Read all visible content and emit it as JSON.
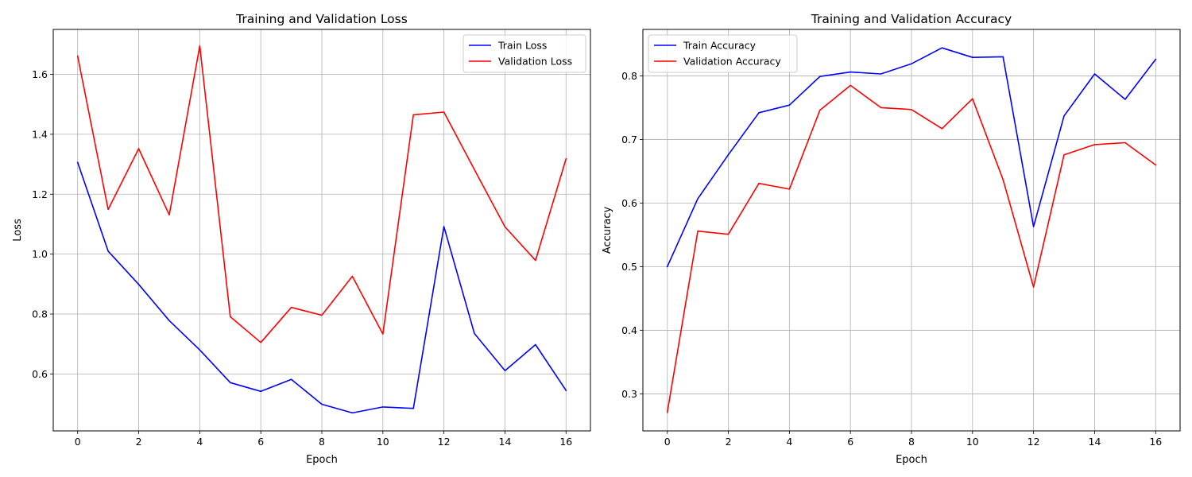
{
  "chart_data": [
    {
      "type": "line",
      "title": "Training and Validation Loss",
      "xlabel": "Epoch",
      "ylabel": "Loss",
      "x": [
        0,
        1,
        2,
        3,
        4,
        5,
        6,
        7,
        8,
        9,
        10,
        11,
        12,
        13,
        14,
        15,
        16
      ],
      "xlim": [
        -0.8,
        16.8
      ],
      "ylim": [
        0.41,
        1.75
      ],
      "xticks": [
        0,
        2,
        4,
        6,
        8,
        10,
        12,
        14,
        16
      ],
      "yticks": [
        0.6,
        0.8,
        1.0,
        1.2,
        1.4,
        1.6
      ],
      "xtick_labels": [
        "0",
        "2",
        "4",
        "6",
        "8",
        "10",
        "12",
        "14",
        "16"
      ],
      "ytick_labels": [
        "0.6",
        "0.8",
        "1.0",
        "1.2",
        "1.4",
        "1.6"
      ],
      "grid": true,
      "legend_position": "top-right",
      "series": [
        {
          "name": "Train Loss",
          "color": "#0000ff",
          "values": [
            1.306,
            1.01,
            0.899,
            0.778,
            0.68,
            0.571,
            0.542,
            0.582,
            0.499,
            0.47,
            0.49,
            0.485,
            1.092,
            0.735,
            0.611,
            0.698,
            0.545
          ]
        },
        {
          "name": "Validation Loss",
          "color": "#ff0000",
          "values": [
            1.661,
            1.149,
            1.352,
            1.131,
            1.695,
            0.791,
            0.705,
            0.822,
            0.796,
            0.926,
            0.733,
            1.465,
            1.474,
            1.282,
            1.091,
            0.979,
            1.318
          ]
        }
      ]
    },
    {
      "type": "line",
      "title": "Training and Validation Accuracy",
      "xlabel": "Epoch",
      "ylabel": "Accuracy",
      "x": [
        0,
        1,
        2,
        3,
        4,
        5,
        6,
        7,
        8,
        9,
        10,
        11,
        12,
        13,
        14,
        15,
        16
      ],
      "xlim": [
        -0.8,
        16.8
      ],
      "ylim": [
        0.242,
        0.873
      ],
      "xticks": [
        0,
        2,
        4,
        6,
        8,
        10,
        12,
        14,
        16
      ],
      "yticks": [
        0.3,
        0.4,
        0.5,
        0.6,
        0.7,
        0.8
      ],
      "xtick_labels": [
        "0",
        "2",
        "4",
        "6",
        "8",
        "10",
        "12",
        "14",
        "16"
      ],
      "ytick_labels": [
        "0.3",
        "0.4",
        "0.5",
        "0.6",
        "0.7",
        "0.8"
      ],
      "grid": true,
      "legend_position": "top-left",
      "series": [
        {
          "name": "Train Accuracy",
          "color": "#0000ff",
          "values": [
            0.5,
            0.607,
            0.676,
            0.742,
            0.754,
            0.799,
            0.806,
            0.803,
            0.819,
            0.844,
            0.829,
            0.83,
            0.563,
            0.737,
            0.803,
            0.763,
            0.826
          ]
        },
        {
          "name": "Validation Accuracy",
          "color": "#ff0000",
          "values": [
            0.271,
            0.556,
            0.551,
            0.631,
            0.622,
            0.746,
            0.785,
            0.75,
            0.747,
            0.717,
            0.764,
            0.637,
            0.468,
            0.676,
            0.692,
            0.695,
            0.66
          ]
        }
      ]
    }
  ]
}
